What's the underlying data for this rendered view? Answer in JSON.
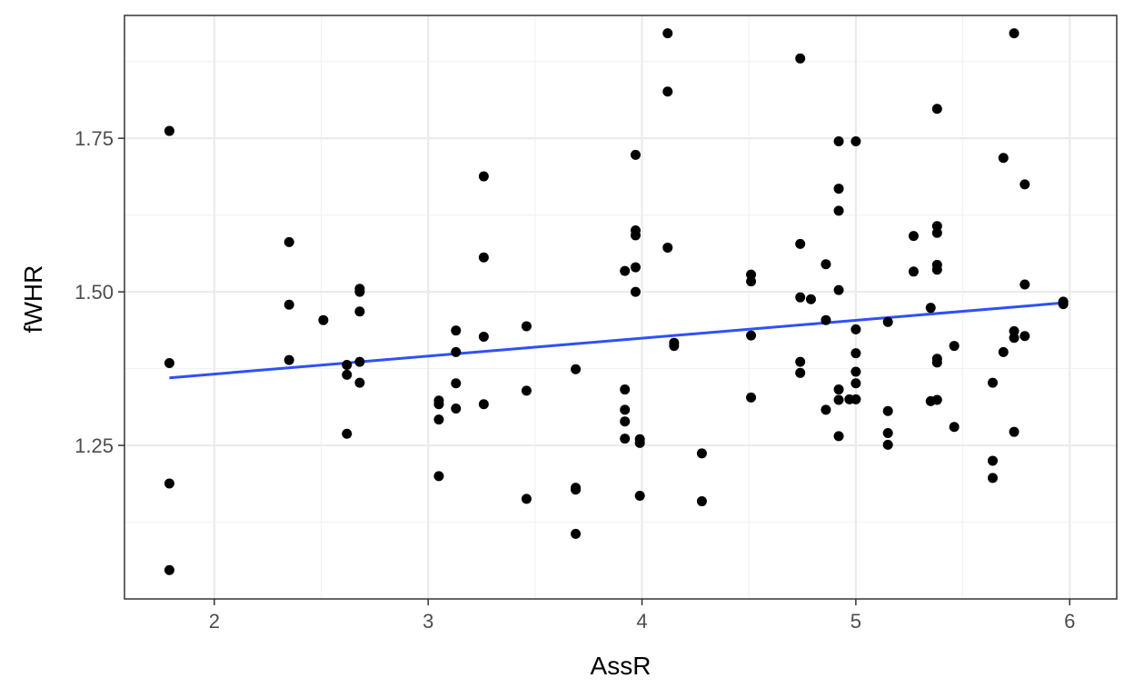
{
  "chart_data": {
    "type": "scatter",
    "title": "",
    "xlabel": "AssR",
    "ylabel": "fWHR",
    "xlim": [
      1.58,
      6.22
    ],
    "ylim": [
      1.0,
      1.95
    ],
    "x_ticks": [
      2,
      3,
      4,
      5,
      6
    ],
    "y_ticks": [
      1.25,
      1.5,
      1.75
    ],
    "x_tick_labels": [
      "2",
      "3",
      "4",
      "5",
      "6"
    ],
    "y_tick_labels": [
      "1.25",
      "1.50",
      "1.75"
    ],
    "grid": true,
    "theme": "bw",
    "points": [
      [
        1.79,
        1.762
      ],
      [
        1.79,
        1.384
      ],
      [
        1.79,
        1.188
      ],
      [
        1.79,
        1.047
      ],
      [
        2.35,
        1.581
      ],
      [
        2.35,
        1.479
      ],
      [
        2.35,
        1.389
      ],
      [
        2.51,
        1.454
      ],
      [
        2.62,
        1.381
      ],
      [
        2.62,
        1.365
      ],
      [
        2.62,
        1.269
      ],
      [
        2.68,
        1.505
      ],
      [
        2.68,
        1.5
      ],
      [
        2.68,
        1.468
      ],
      [
        2.68,
        1.386
      ],
      [
        2.68,
        1.352
      ],
      [
        3.05,
        1.323
      ],
      [
        3.05,
        1.317
      ],
      [
        3.05,
        1.292
      ],
      [
        3.05,
        1.2
      ],
      [
        3.13,
        1.437
      ],
      [
        3.13,
        1.402
      ],
      [
        3.13,
        1.351
      ],
      [
        3.13,
        1.31
      ],
      [
        3.26,
        1.688
      ],
      [
        3.26,
        1.556
      ],
      [
        3.26,
        1.427
      ],
      [
        3.26,
        1.317
      ],
      [
        3.46,
        1.444
      ],
      [
        3.46,
        1.339
      ],
      [
        3.46,
        1.163
      ],
      [
        3.69,
        1.374
      ],
      [
        3.69,
        1.181
      ],
      [
        3.69,
        1.178
      ],
      [
        3.69,
        1.106
      ],
      [
        3.92,
        1.534
      ],
      [
        3.92,
        1.341
      ],
      [
        3.92,
        1.308
      ],
      [
        3.92,
        1.289
      ],
      [
        3.92,
        1.261
      ],
      [
        3.97,
        1.723
      ],
      [
        3.97,
        1.6
      ],
      [
        3.97,
        1.592
      ],
      [
        3.97,
        1.54
      ],
      [
        3.97,
        1.5
      ],
      [
        3.99,
        1.26
      ],
      [
        3.99,
        1.254
      ],
      [
        3.99,
        1.168
      ],
      [
        4.12,
        1.921
      ],
      [
        4.12,
        1.826
      ],
      [
        4.12,
        1.572
      ],
      [
        4.15,
        1.417
      ],
      [
        4.15,
        1.412
      ],
      [
        4.28,
        1.237
      ],
      [
        4.28,
        1.159
      ],
      [
        4.51,
        1.528
      ],
      [
        4.51,
        1.517
      ],
      [
        4.51,
        1.429
      ],
      [
        4.51,
        1.328
      ],
      [
        4.74,
        1.88
      ],
      [
        4.74,
        1.578
      ],
      [
        4.74,
        1.491
      ],
      [
        4.74,
        1.386
      ],
      [
        4.74,
        1.368
      ],
      [
        4.79,
        1.488
      ],
      [
        4.86,
        1.545
      ],
      [
        4.86,
        1.454
      ],
      [
        4.86,
        1.308
      ],
      [
        4.92,
        1.745
      ],
      [
        4.92,
        1.668
      ],
      [
        4.92,
        1.632
      ],
      [
        4.92,
        1.503
      ],
      [
        4.92,
        1.341
      ],
      [
        4.92,
        1.324
      ],
      [
        4.92,
        1.265
      ],
      [
        4.97,
        1.325
      ],
      [
        5.0,
        1.745
      ],
      [
        5.0,
        1.439
      ],
      [
        5.0,
        1.4
      ],
      [
        5.0,
        1.37
      ],
      [
        5.0,
        1.351
      ],
      [
        5.0,
        1.325
      ],
      [
        5.15,
        1.451
      ],
      [
        5.15,
        1.306
      ],
      [
        5.15,
        1.27
      ],
      [
        5.15,
        1.251
      ],
      [
        5.27,
        1.591
      ],
      [
        5.27,
        1.533
      ],
      [
        5.35,
        1.474
      ],
      [
        5.35,
        1.322
      ],
      [
        5.38,
        1.798
      ],
      [
        5.38,
        1.607
      ],
      [
        5.38,
        1.596
      ],
      [
        5.38,
        1.544
      ],
      [
        5.38,
        1.536
      ],
      [
        5.38,
        1.391
      ],
      [
        5.38,
        1.385
      ],
      [
        5.38,
        1.324
      ],
      [
        5.46,
        1.412
      ],
      [
        5.46,
        1.28
      ],
      [
        5.64,
        1.352
      ],
      [
        5.64,
        1.225
      ],
      [
        5.64,
        1.197
      ],
      [
        5.69,
        1.718
      ],
      [
        5.69,
        1.402
      ],
      [
        5.74,
        1.921
      ],
      [
        5.74,
        1.436
      ],
      [
        5.74,
        1.425
      ],
      [
        5.74,
        1.272
      ],
      [
        5.79,
        1.675
      ],
      [
        5.79,
        1.512
      ],
      [
        5.79,
        1.428
      ],
      [
        5.97,
        1.484
      ],
      [
        5.97,
        1.48
      ]
    ],
    "trend_line": {
      "method": "lm",
      "color": "#3050f8",
      "x": [
        1.79,
        5.97
      ],
      "y": [
        1.36,
        1.482
      ]
    },
    "point_color": "#000000",
    "panel_border_color": "#333333",
    "grid_major_color": "#ebebeb",
    "grid_minor_color": "#f2f2f2"
  }
}
